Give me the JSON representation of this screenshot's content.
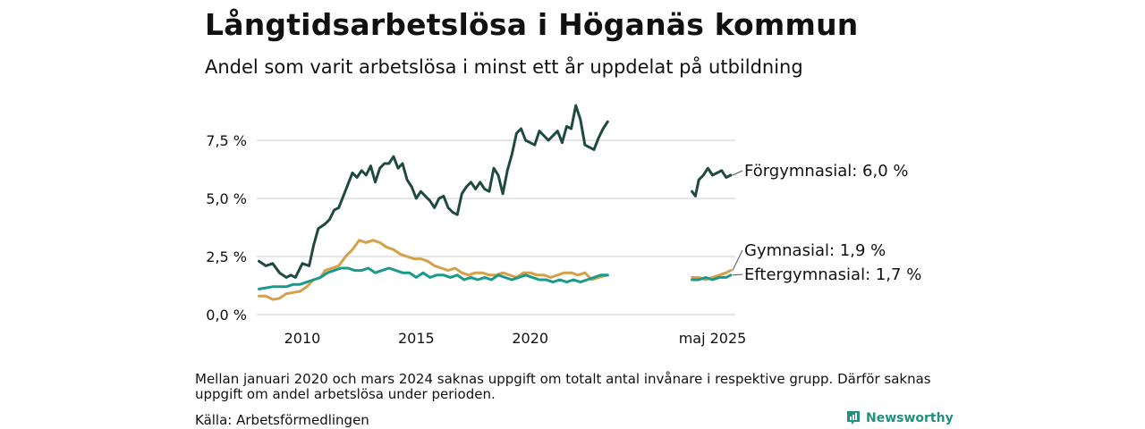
{
  "header": {
    "title": "Långtidsarbetslösa i Höganäs kommun",
    "subtitle": "Andel som varit arbetslösa i minst ett år uppdelat på utbildning"
  },
  "footer": {
    "note": "Mellan januari 2020 och mars 2024 saknas uppgift om totalt antal invånare i respektive grupp. Därför saknas uppgift om andel arbetslösa under perioden.",
    "source": "Källa: Arbetsförmedlingen",
    "brand": "Newsworthy"
  },
  "colors": {
    "forgymnasial": "#1f4a40",
    "gymnasial": "#d4a04a",
    "eftergymnasial": "#1a9a8a",
    "grid": "#dddddd",
    "brand": "#23907f"
  },
  "chart_data": {
    "type": "line",
    "title": "Långtidsarbetslösa i Höganäs kommun",
    "subtitle": "Andel som varit arbetslösa i minst ett år uppdelat på utbildning",
    "x_tick_labels": [
      "2010",
      "2015",
      "2020",
      "maj 2025"
    ],
    "y_tick_labels": [
      "0,0 %",
      "2,5 %",
      "5,0 %",
      "7,5 %"
    ],
    "y_ticks": [
      0,
      2.5,
      5,
      7.5
    ],
    "ylim": [
      0,
      9
    ],
    "grid": true,
    "series": [
      {
        "name": "Förgymnasial",
        "end_label": "Förgymnasial: 6,0 %",
        "segments": [
          [
            [
              2008.1,
              2.3
            ],
            [
              2008.4,
              2.1
            ],
            [
              2008.7,
              2.2
            ],
            [
              2009.0,
              1.8
            ],
            [
              2009.3,
              1.6
            ],
            [
              2009.5,
              1.7
            ],
            [
              2009.7,
              1.6
            ],
            [
              2010.0,
              2.2
            ],
            [
              2010.3,
              2.1
            ],
            [
              2010.5,
              3.0
            ],
            [
              2010.7,
              3.7
            ],
            [
              2011.0,
              3.9
            ],
            [
              2011.2,
              4.1
            ],
            [
              2011.4,
              4.5
            ],
            [
              2011.6,
              4.6
            ],
            [
              2011.8,
              5.1
            ],
            [
              2012.0,
              5.6
            ],
            [
              2012.2,
              6.1
            ],
            [
              2012.4,
              5.9
            ],
            [
              2012.6,
              6.2
            ],
            [
              2012.8,
              6.0
            ],
            [
              2013.0,
              6.4
            ],
            [
              2013.2,
              5.7
            ],
            [
              2013.4,
              6.3
            ],
            [
              2013.6,
              6.5
            ],
            [
              2013.8,
              6.5
            ],
            [
              2014.0,
              6.8
            ],
            [
              2014.2,
              6.3
            ],
            [
              2014.4,
              6.5
            ],
            [
              2014.6,
              5.8
            ],
            [
              2014.8,
              5.5
            ],
            [
              2015.0,
              5.0
            ],
            [
              2015.2,
              5.3
            ],
            [
              2015.4,
              5.1
            ],
            [
              2015.6,
              4.9
            ],
            [
              2015.8,
              4.6
            ],
            [
              2016.0,
              5.0
            ],
            [
              2016.2,
              5.1
            ],
            [
              2016.4,
              4.6
            ],
            [
              2016.6,
              4.4
            ],
            [
              2016.8,
              4.3
            ],
            [
              2017.0,
              5.2
            ],
            [
              2017.2,
              5.5
            ],
            [
              2017.4,
              5.7
            ],
            [
              2017.6,
              5.4
            ],
            [
              2017.8,
              5.7
            ],
            [
              2018.0,
              5.4
            ],
            [
              2018.2,
              5.3
            ],
            [
              2018.4,
              6.3
            ],
            [
              2018.6,
              6.0
            ],
            [
              2018.8,
              5.2
            ],
            [
              2019.0,
              6.2
            ],
            [
              2019.2,
              6.9
            ],
            [
              2019.4,
              7.8
            ],
            [
              2019.6,
              8.0
            ],
            [
              2019.8,
              7.5
            ],
            [
              2020.0,
              7.4
            ],
            [
              2020.2,
              7.3
            ],
            [
              2020.4,
              7.9
            ],
            [
              2020.6,
              7.7
            ],
            [
              2020.8,
              7.5
            ],
            [
              2021.0,
              7.7
            ],
            [
              2021.2,
              7.9
            ],
            [
              2021.4,
              7.4
            ],
            [
              2021.6,
              8.1
            ],
            [
              2021.8,
              8.0
            ],
            [
              2022.0,
              9.0
            ],
            [
              2022.2,
              8.4
            ],
            [
              2022.4,
              7.3
            ],
            [
              2022.6,
              7.2
            ],
            [
              2022.8,
              7.1
            ],
            [
              2023.0,
              7.6
            ],
            [
              2023.2,
              8.0
            ],
            [
              2023.4,
              8.3
            ]
          ],
          [
            [
              2027.1,
              5.3
            ],
            [
              2027.25,
              5.1
            ],
            [
              2027.4,
              5.8
            ],
            [
              2027.6,
              6.0
            ],
            [
              2027.8,
              6.3
            ],
            [
              2028.0,
              6.0
            ],
            [
              2028.2,
              6.1
            ],
            [
              2028.4,
              6.2
            ],
            [
              2028.6,
              5.9
            ],
            [
              2028.8,
              6.0
            ]
          ]
        ]
      },
      {
        "name": "Gymnasial",
        "end_label": "Gymnasial: 1,9 %",
        "segments": [
          [
            [
              2008.1,
              0.8
            ],
            [
              2008.4,
              0.8
            ],
            [
              2008.7,
              0.65
            ],
            [
              2009.0,
              0.7
            ],
            [
              2009.3,
              0.9
            ],
            [
              2009.6,
              0.95
            ],
            [
              2009.9,
              1.0
            ],
            [
              2010.2,
              1.2
            ],
            [
              2010.5,
              1.5
            ],
            [
              2010.8,
              1.6
            ],
            [
              2011.0,
              1.9
            ],
            [
              2011.3,
              2.0
            ],
            [
              2011.6,
              2.1
            ],
            [
              2011.9,
              2.5
            ],
            [
              2012.2,
              2.8
            ],
            [
              2012.5,
              3.2
            ],
            [
              2012.8,
              3.1
            ],
            [
              2013.1,
              3.2
            ],
            [
              2013.4,
              3.1
            ],
            [
              2013.7,
              2.9
            ],
            [
              2014.0,
              2.8
            ],
            [
              2014.3,
              2.6
            ],
            [
              2014.6,
              2.5
            ],
            [
              2014.9,
              2.4
            ],
            [
              2015.2,
              2.4
            ],
            [
              2015.5,
              2.3
            ],
            [
              2015.8,
              2.1
            ],
            [
              2016.1,
              2.0
            ],
            [
              2016.4,
              1.9
            ],
            [
              2016.7,
              2.0
            ],
            [
              2017.0,
              1.8
            ],
            [
              2017.3,
              1.7
            ],
            [
              2017.6,
              1.8
            ],
            [
              2017.9,
              1.8
            ],
            [
              2018.2,
              1.7
            ],
            [
              2018.5,
              1.7
            ],
            [
              2018.8,
              1.8
            ],
            [
              2019.1,
              1.7
            ],
            [
              2019.4,
              1.6
            ],
            [
              2019.7,
              1.8
            ],
            [
              2020.0,
              1.8
            ],
            [
              2020.3,
              1.7
            ],
            [
              2020.6,
              1.7
            ],
            [
              2020.9,
              1.6
            ],
            [
              2021.2,
              1.7
            ],
            [
              2021.5,
              1.8
            ],
            [
              2021.8,
              1.8
            ],
            [
              2022.1,
              1.7
            ],
            [
              2022.4,
              1.8
            ],
            [
              2022.7,
              1.5
            ],
            [
              2023.0,
              1.6
            ],
            [
              2023.4,
              1.7
            ]
          ],
          [
            [
              2027.1,
              1.6
            ],
            [
              2027.4,
              1.6
            ],
            [
              2027.7,
              1.5
            ],
            [
              2028.0,
              1.6
            ],
            [
              2028.3,
              1.7
            ],
            [
              2028.6,
              1.8
            ],
            [
              2028.8,
              1.9
            ]
          ]
        ]
      },
      {
        "name": "Eftergymnasial",
        "end_label": "Eftergymnasial: 1,7 %",
        "segments": [
          [
            [
              2008.1,
              1.1
            ],
            [
              2008.4,
              1.15
            ],
            [
              2008.7,
              1.2
            ],
            [
              2009.0,
              1.2
            ],
            [
              2009.3,
              1.2
            ],
            [
              2009.6,
              1.3
            ],
            [
              2009.9,
              1.3
            ],
            [
              2010.2,
              1.4
            ],
            [
              2010.5,
              1.5
            ],
            [
              2010.8,
              1.6
            ],
            [
              2011.1,
              1.8
            ],
            [
              2011.4,
              1.9
            ],
            [
              2011.7,
              2.0
            ],
            [
              2012.0,
              2.0
            ],
            [
              2012.3,
              1.9
            ],
            [
              2012.6,
              1.9
            ],
            [
              2012.9,
              2.0
            ],
            [
              2013.2,
              1.8
            ],
            [
              2013.5,
              1.9
            ],
            [
              2013.8,
              2.0
            ],
            [
              2014.1,
              1.9
            ],
            [
              2014.4,
              1.8
            ],
            [
              2014.7,
              1.8
            ],
            [
              2015.0,
              1.6
            ],
            [
              2015.3,
              1.8
            ],
            [
              2015.6,
              1.6
            ],
            [
              2015.9,
              1.7
            ],
            [
              2016.2,
              1.7
            ],
            [
              2016.5,
              1.6
            ],
            [
              2016.8,
              1.7
            ],
            [
              2017.1,
              1.5
            ],
            [
              2017.4,
              1.6
            ],
            [
              2017.7,
              1.5
            ],
            [
              2018.0,
              1.6
            ],
            [
              2018.3,
              1.5
            ],
            [
              2018.6,
              1.7
            ],
            [
              2018.9,
              1.6
            ],
            [
              2019.2,
              1.5
            ],
            [
              2019.5,
              1.6
            ],
            [
              2019.8,
              1.7
            ],
            [
              2020.1,
              1.6
            ],
            [
              2020.4,
              1.5
            ],
            [
              2020.7,
              1.5
            ],
            [
              2021.0,
              1.4
            ],
            [
              2021.3,
              1.5
            ],
            [
              2021.6,
              1.4
            ],
            [
              2021.9,
              1.5
            ],
            [
              2022.2,
              1.4
            ],
            [
              2022.5,
              1.5
            ],
            [
              2022.8,
              1.6
            ],
            [
              2023.1,
              1.7
            ],
            [
              2023.4,
              1.7
            ]
          ],
          [
            [
              2027.1,
              1.5
            ],
            [
              2027.4,
              1.5
            ],
            [
              2027.7,
              1.6
            ],
            [
              2028.0,
              1.5
            ],
            [
              2028.3,
              1.6
            ],
            [
              2028.6,
              1.6
            ],
            [
              2028.8,
              1.7
            ]
          ]
        ]
      }
    ]
  }
}
